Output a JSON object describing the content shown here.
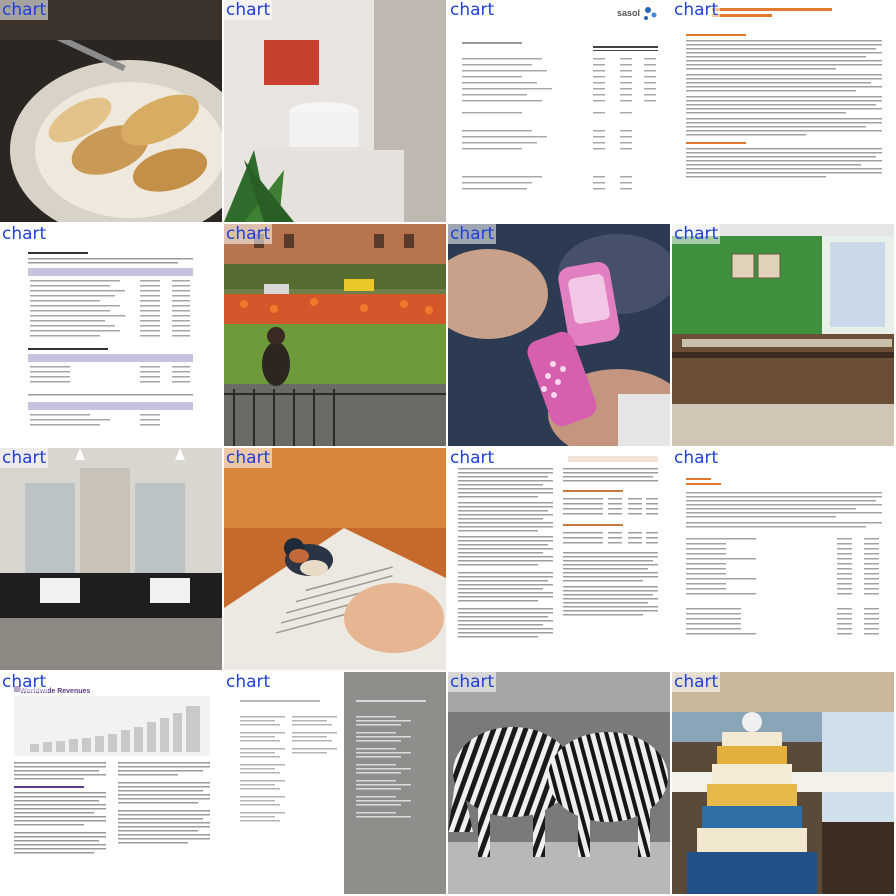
{
  "tiles": [
    {
      "label": "chart",
      "subject": "bread-plate"
    },
    {
      "label": "chart",
      "subject": "bathroom-sink"
    },
    {
      "label": "chart",
      "subject": "sasol-report-table",
      "logo_text": "sasol"
    },
    {
      "label": "chart",
      "subject": "annual-report-text-page"
    },
    {
      "label": "chart",
      "subject": "shareholder-tables-page"
    },
    {
      "label": "chart",
      "subject": "park-with-tulips"
    },
    {
      "label": "chart",
      "subject": "pink-flip-phone"
    },
    {
      "label": "chart",
      "subject": "green-room"
    },
    {
      "label": "chart",
      "subject": "bathroom-mirrors"
    },
    {
      "label": "chart",
      "subject": "bird-on-book"
    },
    {
      "label": "chart",
      "subject": "stock-plan-text-page"
    },
    {
      "label": "chart",
      "subject": "options-table-page"
    },
    {
      "label": "chart",
      "subject": "revenue-bar-chart-page",
      "heading_text": "Worldwide Revenues"
    },
    {
      "label": "chart",
      "subject": "directors-info-page"
    },
    {
      "label": "chart",
      "subject": "zebras"
    },
    {
      "label": "chart",
      "subject": "cake-banquet"
    }
  ],
  "colors": {
    "label_text": "#1f3fd6",
    "orange_accent": "#e07a2f",
    "purple_accent": "#5d3a86"
  }
}
